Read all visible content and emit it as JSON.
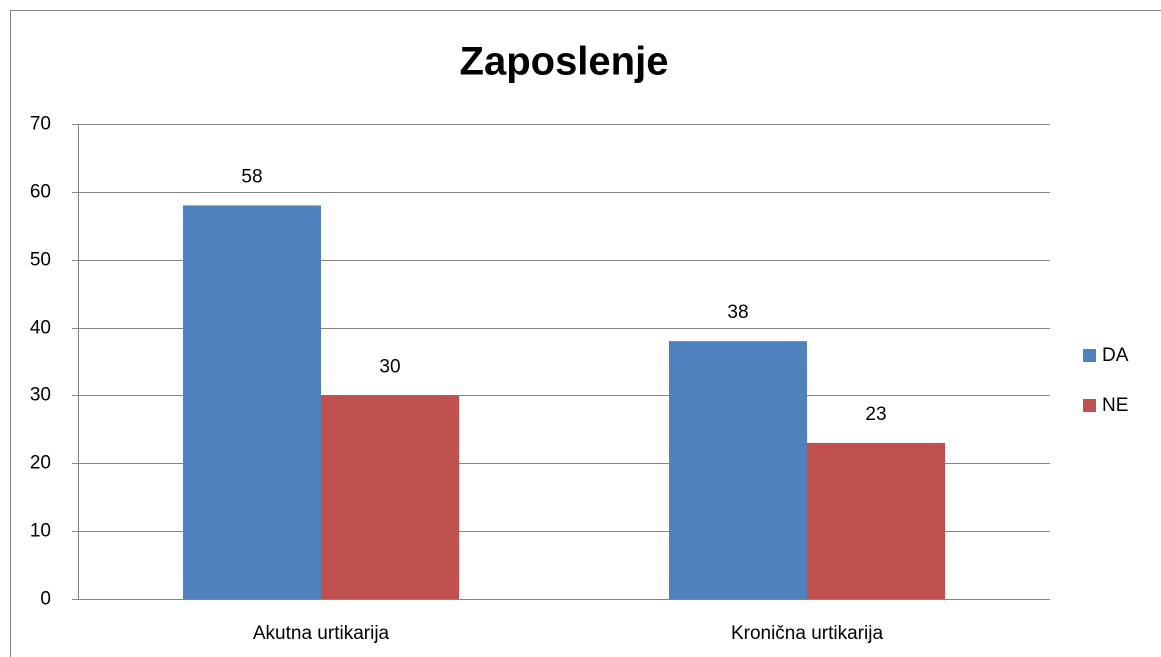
{
  "chart_data": {
    "type": "bar",
    "title": "Zaposlenje",
    "categories": [
      "Akutna urtikarija",
      "Kronična urtikarija"
    ],
    "series": [
      {
        "name": "DA",
        "color": "#4f81bd",
        "values": [
          58,
          38
        ]
      },
      {
        "name": "NE",
        "color": "#c0504d",
        "values": [
          30,
          23
        ]
      }
    ],
    "ylim": [
      0,
      70
    ],
    "yticks": [
      0,
      10,
      20,
      30,
      40,
      50,
      60,
      70
    ],
    "grid": true,
    "legend": "right"
  }
}
